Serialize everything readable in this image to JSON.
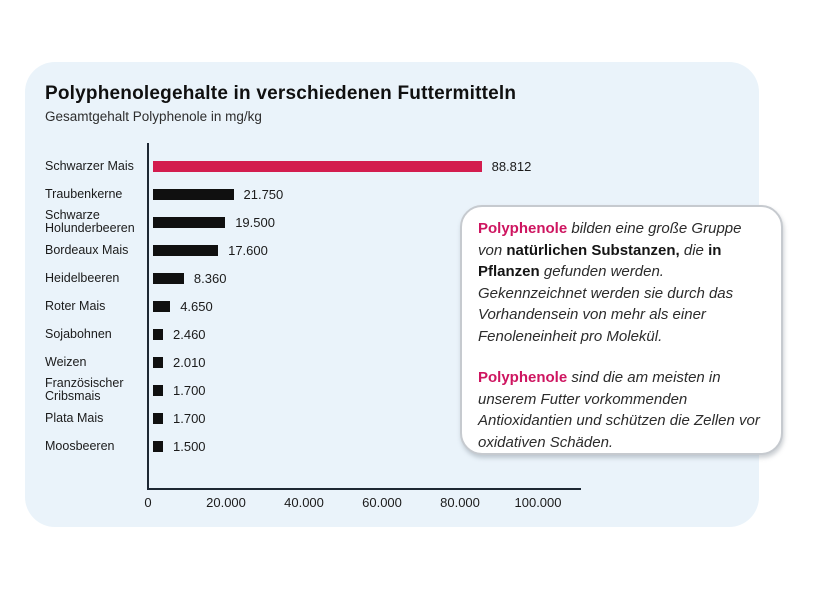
{
  "header": {
    "title": "Polyphenolegehalte in verschiedenen Futtermitteln",
    "subtitle": "Gesamtgehalt Polyphenole in mg/kg"
  },
  "colors": {
    "page_background": "#ffffff",
    "card_background": "#eaf3fa",
    "bar_default": "#101010",
    "bar_highlight": "#d31c4e",
    "brand_pink_text": "#ce1560",
    "axis": "#1d2733"
  },
  "chart_data": {
    "type": "bar",
    "orientation": "horizontal",
    "title": "Polyphenolegehalte in verschiedenen Futtermitteln",
    "subtitle": "Gesamtgehalt Polyphenole in mg/kg",
    "unit": "mg/kg",
    "categories": [
      "Schwarzer Mais",
      "Traubenkerne",
      "Schwarze Holunderbeeren",
      "Bordeaux Mais",
      "Heidelbeeren",
      "Roter Mais",
      "Sojabohnen",
      "Weizen",
      "Französischer Cribsmais",
      "Plata Mais",
      "Moosbeeren"
    ],
    "values": [
      88812,
      21750,
      19500,
      17600,
      8360,
      4650,
      2460,
      2010,
      1700,
      1700,
      1500
    ],
    "value_labels": [
      "88.812",
      "21.750",
      "19.500",
      "17.600",
      "8.360",
      "4.650",
      "2.460",
      "2.010",
      "1.700",
      "1.700",
      "1.500"
    ],
    "highlight_index": 0,
    "xlim": [
      0,
      100000
    ],
    "x_ticks": [
      "0",
      "20.000",
      "40.000",
      "60.000",
      "80.000",
      "100.000"
    ],
    "x_tick_values": [
      0,
      20000,
      40000,
      60000,
      80000,
      100000
    ],
    "grid": false,
    "legend": false
  },
  "infobox": {
    "paragraphs": [
      {
        "segments": [
          {
            "text": "Polyphenole",
            "style": "brand-bold"
          },
          {
            "text": " bilden eine große Gruppe von ",
            "style": "italic"
          },
          {
            "text": "natürlichen Substanzen,",
            "style": "bold"
          },
          {
            "text": " die ",
            "style": "italic"
          },
          {
            "text": "in Pflanzen",
            "style": "bold"
          },
          {
            "text": " gefunden werden. Gekennzeichnet werden sie durch das Vorhandensein von mehr als einer Fenoleneinheit pro Molekül.",
            "style": "italic"
          }
        ]
      },
      {
        "segments": [
          {
            "text": "Polyphenole",
            "style": "brand-bold"
          },
          {
            "text": " sind die am meisten in unserem Futter vorkommenden Antioxidantien und schützen die Zellen vor oxidativen Schäden.",
            "style": "italic"
          }
        ]
      }
    ]
  }
}
